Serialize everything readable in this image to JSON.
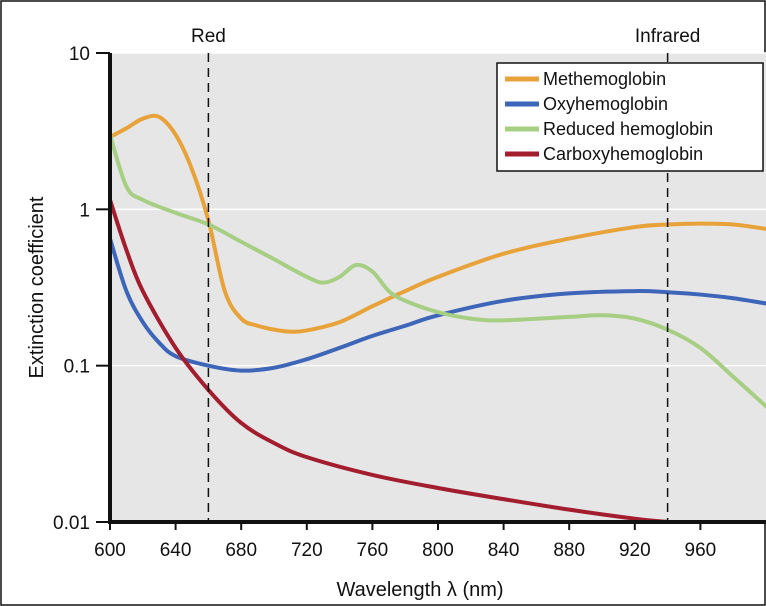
{
  "chart_data": {
    "type": "line",
    "title": "",
    "xlabel": "Wavelength λ (nm)",
    "ylabel": "Extinction coefficient",
    "xlim": [
      600,
      1000
    ],
    "ylim": [
      0.01,
      10
    ],
    "yscale": "log",
    "grid": "horizontal",
    "legend_position": "top-right",
    "background_color": "#e6e6e6",
    "x_ticks": [
      {
        "value": 600,
        "label": "600"
      },
      {
        "value": 640,
        "label": "640"
      },
      {
        "value": 680,
        "label": "680"
      },
      {
        "value": 720,
        "label": "720"
      },
      {
        "value": 760,
        "label": "760"
      },
      {
        "value": 800,
        "label": "800"
      },
      {
        "value": 840,
        "label": "840"
      },
      {
        "value": 880,
        "label": "880"
      },
      {
        "value": 920,
        "label": "920"
      },
      {
        "value": 960,
        "label": "960"
      }
    ],
    "y_ticks": [
      {
        "value": 0.01,
        "label": "0.01"
      },
      {
        "value": 0.1,
        "label": "0.1"
      },
      {
        "value": 1,
        "label": "1"
      },
      {
        "value": 10,
        "label": "10"
      }
    ],
    "annotations": [
      {
        "text": "Red",
        "x": 660
      },
      {
        "text": "Infrared",
        "x": 940
      }
    ],
    "series": [
      {
        "name": "Methemoglobin",
        "color": "#e8a23a",
        "points": [
          [
            600,
            2.9
          ],
          [
            610,
            3.3
          ],
          [
            620,
            3.8
          ],
          [
            630,
            3.9
          ],
          [
            640,
            3.0
          ],
          [
            650,
            1.8
          ],
          [
            660,
            0.85
          ],
          [
            670,
            0.3
          ],
          [
            680,
            0.2
          ],
          [
            690,
            0.18
          ],
          [
            700,
            0.17
          ],
          [
            710,
            0.165
          ],
          [
            720,
            0.168
          ],
          [
            740,
            0.19
          ],
          [
            760,
            0.24
          ],
          [
            780,
            0.3
          ],
          [
            800,
            0.37
          ],
          [
            840,
            0.52
          ],
          [
            880,
            0.65
          ],
          [
            920,
            0.77
          ],
          [
            940,
            0.8
          ],
          [
            960,
            0.81
          ],
          [
            980,
            0.8
          ],
          [
            1000,
            0.75
          ]
        ]
      },
      {
        "name": "Oxyhemoglobin",
        "color": "#3d65b8",
        "points": [
          [
            600,
            0.65
          ],
          [
            610,
            0.3
          ],
          [
            620,
            0.19
          ],
          [
            630,
            0.14
          ],
          [
            640,
            0.115
          ],
          [
            660,
            0.1
          ],
          [
            680,
            0.093
          ],
          [
            700,
            0.097
          ],
          [
            720,
            0.11
          ],
          [
            740,
            0.13
          ],
          [
            760,
            0.155
          ],
          [
            780,
            0.18
          ],
          [
            800,
            0.21
          ],
          [
            840,
            0.26
          ],
          [
            880,
            0.29
          ],
          [
            920,
            0.3
          ],
          [
            940,
            0.295
          ],
          [
            960,
            0.285
          ],
          [
            980,
            0.27
          ],
          [
            1000,
            0.25
          ]
        ]
      },
      {
        "name": "Reduced hemoglobin",
        "color": "#a6cf84",
        "points": [
          [
            600,
            3.0
          ],
          [
            610,
            1.4
          ],
          [
            620,
            1.15
          ],
          [
            640,
            0.95
          ],
          [
            660,
            0.8
          ],
          [
            680,
            0.62
          ],
          [
            700,
            0.48
          ],
          [
            720,
            0.37
          ],
          [
            730,
            0.34
          ],
          [
            740,
            0.37
          ],
          [
            750,
            0.44
          ],
          [
            760,
            0.4
          ],
          [
            770,
            0.3
          ],
          [
            780,
            0.26
          ],
          [
            800,
            0.22
          ],
          [
            820,
            0.2
          ],
          [
            840,
            0.195
          ],
          [
            880,
            0.205
          ],
          [
            900,
            0.21
          ],
          [
            920,
            0.2
          ],
          [
            940,
            0.17
          ],
          [
            960,
            0.13
          ],
          [
            980,
            0.085
          ],
          [
            1000,
            0.055
          ]
        ]
      },
      {
        "name": "Carboxyhemoglobin",
        "color": "#a21d2d",
        "points": [
          [
            600,
            1.15
          ],
          [
            610,
            0.55
          ],
          [
            620,
            0.3
          ],
          [
            640,
            0.13
          ],
          [
            660,
            0.07
          ],
          [
            680,
            0.043
          ],
          [
            700,
            0.032
          ],
          [
            720,
            0.026
          ],
          [
            760,
            0.02
          ],
          [
            800,
            0.0165
          ],
          [
            840,
            0.014
          ],
          [
            880,
            0.012
          ],
          [
            920,
            0.0105
          ],
          [
            940,
            0.01
          ]
        ]
      }
    ]
  }
}
